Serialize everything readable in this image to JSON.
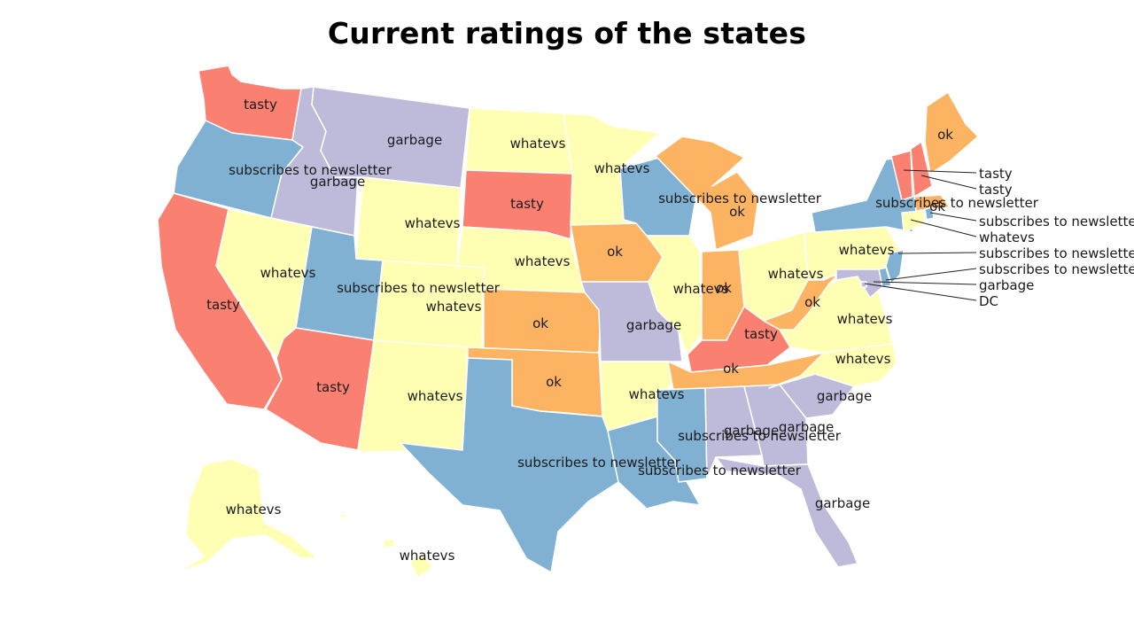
{
  "title": "Current ratings of the states",
  "palette": {
    "tasty": "#fa8072",
    "subscribes to newsletter": "#80b1d3",
    "garbage": "#bebada",
    "whatevs": "#ffffb3",
    "ok": "#fdb462"
  },
  "states": [
    {
      "id": "WA",
      "rating": "tasty",
      "label": "tasty"
    },
    {
      "id": "OR",
      "rating": "subscribes to newsletter",
      "label": "subscribes to newsletter"
    },
    {
      "id": "CA",
      "rating": "tasty",
      "label": "tasty"
    },
    {
      "id": "ID",
      "rating": "garbage",
      "label": "garbage"
    },
    {
      "id": "NV",
      "rating": "whatevs",
      "label": "whatevs"
    },
    {
      "id": "MT",
      "rating": "garbage",
      "label": "garbage"
    },
    {
      "id": "WY",
      "rating": "whatevs",
      "label": "whatevs"
    },
    {
      "id": "UT",
      "rating": "subscribes to newsletter",
      "label": "subscribes to newsletter"
    },
    {
      "id": "AZ",
      "rating": "tasty",
      "label": "tasty"
    },
    {
      "id": "CO",
      "rating": "whatevs",
      "label": "whatevs"
    },
    {
      "id": "NM",
      "rating": "whatevs",
      "label": "whatevs"
    },
    {
      "id": "ND",
      "rating": "whatevs",
      "label": "whatevs"
    },
    {
      "id": "SD",
      "rating": "tasty",
      "label": "tasty"
    },
    {
      "id": "NE",
      "rating": "whatevs",
      "label": "whatevs"
    },
    {
      "id": "KS",
      "rating": "ok",
      "label": "ok"
    },
    {
      "id": "OK",
      "rating": "ok",
      "label": "ok"
    },
    {
      "id": "TX",
      "rating": "subscribes to newsletter",
      "label": "subscribes to newsletter"
    },
    {
      "id": "MN",
      "rating": "whatevs",
      "label": "whatevs"
    },
    {
      "id": "IA",
      "rating": "ok",
      "label": "ok"
    },
    {
      "id": "MO",
      "rating": "garbage",
      "label": "garbage"
    },
    {
      "id": "AR",
      "rating": "whatevs",
      "label": "whatevs"
    },
    {
      "id": "LA",
      "rating": "subscribes to newsletter",
      "label": "subscribes to newsletter"
    },
    {
      "id": "WI",
      "rating": "subscribes to newsletter",
      "label": "subscribes to newsletter"
    },
    {
      "id": "IL",
      "rating": "whatevs",
      "label": "whatevs"
    },
    {
      "id": "MI",
      "rating": "ok",
      "label": "ok"
    },
    {
      "id": "IN",
      "rating": "ok",
      "label": "ok"
    },
    {
      "id": "OH",
      "rating": "whatevs",
      "label": "whatevs"
    },
    {
      "id": "KY",
      "rating": "tasty",
      "label": "tasty"
    },
    {
      "id": "TN",
      "rating": "ok",
      "label": "ok"
    },
    {
      "id": "MS",
      "rating": "subscribes to newsletter",
      "label": "subscribes to newsletter"
    },
    {
      "id": "AL",
      "rating": "garbage",
      "label": "garbage"
    },
    {
      "id": "GA",
      "rating": "garbage",
      "label": "garbage"
    },
    {
      "id": "FL",
      "rating": "garbage",
      "label": "garbage"
    },
    {
      "id": "SC",
      "rating": "garbage",
      "label": "garbage"
    },
    {
      "id": "NC",
      "rating": "whatevs",
      "label": "whatevs"
    },
    {
      "id": "VA",
      "rating": "whatevs",
      "label": "whatevs"
    },
    {
      "id": "WV",
      "rating": "ok",
      "label": "ok"
    },
    {
      "id": "PA",
      "rating": "whatevs",
      "label": "whatevs"
    },
    {
      "id": "NY",
      "rating": "subscribes to newsletter",
      "label": "subscribes to newsletter"
    },
    {
      "id": "ME",
      "rating": "ok",
      "label": "ok"
    },
    {
      "id": "MA",
      "rating": "ok",
      "label": "ok"
    },
    {
      "id": "AK",
      "rating": "whatevs",
      "label": "whatevs"
    },
    {
      "id": "HI",
      "rating": "whatevs",
      "label": "whatevs"
    },
    {
      "id": "VT",
      "rating": "tasty",
      "label": "tasty"
    },
    {
      "id": "NH",
      "rating": "tasty",
      "label": "tasty"
    },
    {
      "id": "RI",
      "rating": "subscribes to newsletter",
      "label": "subscribes to newsletter"
    },
    {
      "id": "CT",
      "rating": "whatevs",
      "label": "whatevs"
    },
    {
      "id": "NJ",
      "rating": "subscribes to newsletter",
      "label": "subscribes to newsletter"
    },
    {
      "id": "DE",
      "rating": "subscribes to newsletter",
      "label": "subscribes to newsletter"
    },
    {
      "id": "MD",
      "rating": "garbage",
      "label": "garbage"
    },
    {
      "id": "DC",
      "rating": "garbage",
      "label": "DC"
    }
  ]
}
